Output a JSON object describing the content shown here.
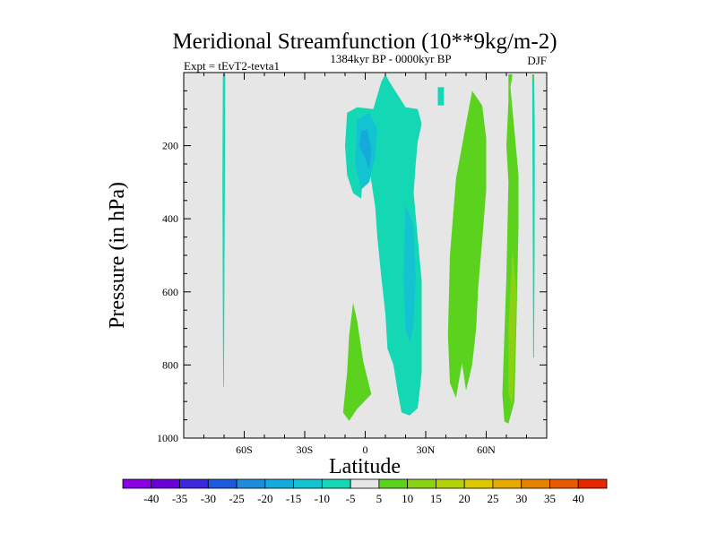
{
  "chart_data": {
    "type": "contour",
    "title": "Meridional Streamfunction (10**9kg/m-2)",
    "left_label": "Expt = tEvT2-tevta1",
    "center_label": "1384kyr BP - 0000kyr BP",
    "right_label": "DJF",
    "xlabel": "Latitude",
    "ylabel": "Pressure (in hPa)",
    "xlim": [
      -90,
      90
    ],
    "ylim": [
      1000,
      0
    ],
    "x_ticks": [
      {
        "value": -60,
        "label": "60S"
      },
      {
        "value": -30,
        "label": "30S"
      },
      {
        "value": 0,
        "label": "0"
      },
      {
        "value": 30,
        "label": "30N"
      },
      {
        "value": 60,
        "label": "60N"
      }
    ],
    "y_ticks": [
      {
        "value": 200,
        "label": "200"
      },
      {
        "value": 400,
        "label": "400"
      },
      {
        "value": 600,
        "label": "600"
      },
      {
        "value": 800,
        "label": "800"
      },
      {
        "value": 1000,
        "label": "1000"
      }
    ],
    "background_color": "#e6e6e6",
    "colorbar": {
      "boxes": [
        {
          "range": "< -40",
          "color": "#8c00e6"
        },
        {
          "range": "-40 to -35",
          "color": "#6a00d8"
        },
        {
          "range": "-35 to -30",
          "color": "#3c28dc"
        },
        {
          "range": "-30 to -25",
          "color": "#1e5adc"
        },
        {
          "range": "-25 to -20",
          "color": "#1e8cdc"
        },
        {
          "range": "-20 to -15",
          "color": "#14aadc"
        },
        {
          "range": "-15 to -10",
          "color": "#14c3d2"
        },
        {
          "range": "-10 to -5",
          "color": "#14d7b4"
        },
        {
          "range": "-5 to 5",
          "color": "#e6e6e6"
        },
        {
          "range": "5 to 10",
          "color": "#5ad21e"
        },
        {
          "range": "10 to 15",
          "color": "#8cd214"
        },
        {
          "range": "15 to 20",
          "color": "#b4d20a"
        },
        {
          "range": "20 to 25",
          "color": "#dcc800"
        },
        {
          "range": "25 to 30",
          "color": "#e6aa00"
        },
        {
          "range": "30 to 35",
          "color": "#e68200"
        },
        {
          "range": "35 to 40",
          "color": "#e65a00"
        },
        {
          "range": "> 40",
          "color": "#e62800"
        }
      ],
      "labels": [
        "-40",
        "-35",
        "-30",
        "-25",
        "-20",
        "-15",
        "-10",
        "-5",
        "5",
        "10",
        "15",
        "20",
        "25",
        "30",
        "35",
        "40"
      ]
    },
    "regions": [
      {
        "name": "Thin negative cell near 70S",
        "level": "-10 to -5",
        "color": "#14d7b4",
        "polygon": [
          [
            -70.6,
            5
          ],
          [
            -69.4,
            5
          ],
          [
            -69.6,
            300
          ],
          [
            -69.9,
            700
          ],
          [
            -70.1,
            860
          ],
          [
            -70.4,
            860
          ],
          [
            -70.6,
            700
          ],
          [
            -70.8,
            300
          ]
        ]
      },
      {
        "name": "Main negative cell (equator to 30N)",
        "level": "-10 to -5",
        "color": "#14d7b4",
        "polygon": [
          [
            -9,
            110
          ],
          [
            -4,
            95
          ],
          [
            4,
            100
          ],
          [
            8,
            25
          ],
          [
            10,
            5
          ],
          [
            12,
            25
          ],
          [
            16,
            60
          ],
          [
            20,
            95
          ],
          [
            26,
            100
          ],
          [
            28,
            140
          ],
          [
            26,
            190
          ],
          [
            25,
            250
          ],
          [
            24,
            330
          ],
          [
            26,
            450
          ],
          [
            28,
            570
          ],
          [
            28,
            700
          ],
          [
            28,
            820
          ],
          [
            27,
            870
          ],
          [
            26,
            918
          ],
          [
            22,
            938
          ],
          [
            18,
            930
          ],
          [
            16,
            870
          ],
          [
            14,
            800
          ],
          [
            11,
            755
          ],
          [
            10,
            660
          ],
          [
            8,
            560
          ],
          [
            6,
            450
          ],
          [
            5,
            370
          ],
          [
            2,
            260
          ],
          [
            0,
            190
          ],
          [
            -2,
            345
          ],
          [
            -6,
            330
          ],
          [
            -9,
            280
          ],
          [
            -10,
            200
          ]
        ]
      },
      {
        "name": "Upper core",
        "level": "-15 to -10",
        "color": "#14c3d2",
        "polygon": [
          [
            -4,
            130
          ],
          [
            2,
            110
          ],
          [
            6,
            155
          ],
          [
            5,
            230
          ],
          [
            2,
            300
          ],
          [
            -2,
            320
          ],
          [
            -5,
            250
          ]
        ]
      },
      {
        "name": "Lower core",
        "level": "-15 to -10",
        "color": "#14c3d2",
        "polygon": [
          [
            20,
            360
          ],
          [
            24,
            420
          ],
          [
            25,
            560
          ],
          [
            24,
            690
          ],
          [
            22,
            740
          ],
          [
            20,
            700
          ],
          [
            19,
            560
          ]
        ]
      },
      {
        "name": "Small negative patch",
        "level": "-10 to -5",
        "color": "#14d7b4",
        "polygon": [
          [
            36,
            40
          ],
          [
            39,
            40
          ],
          [
            39,
            90
          ],
          [
            36,
            90
          ]
        ]
      },
      {
        "name": "Inner minimum",
        "level": "-20 to -15",
        "color": "#14aadc",
        "polygon": [
          [
            -2,
            160
          ],
          [
            1,
            155
          ],
          [
            3,
            210
          ],
          [
            2,
            265
          ],
          [
            0,
            235
          ],
          [
            -3,
            200
          ]
        ]
      },
      {
        "name": "Tropical positive patch",
        "level": "5 to 10",
        "color": "#5ad21e",
        "polygon": [
          [
            -6,
            630
          ],
          [
            -4,
            680
          ],
          [
            -1,
            790
          ],
          [
            3,
            880
          ],
          [
            -4,
            920
          ],
          [
            -8,
            953
          ],
          [
            -11,
            930
          ],
          [
            -9,
            820
          ],
          [
            -8,
            720
          ]
        ]
      },
      {
        "name": "Mid-latitude positive cell",
        "level": "5 to 10",
        "color": "#5ad21e",
        "polygon": [
          [
            53,
            50
          ],
          [
            58,
            90
          ],
          [
            60,
            180
          ],
          [
            60,
            320
          ],
          [
            58,
            460
          ],
          [
            56,
            590
          ],
          [
            55,
            700
          ],
          [
            53,
            800
          ],
          [
            50,
            870
          ],
          [
            48,
            795
          ],
          [
            45,
            890
          ],
          [
            42,
            850
          ],
          [
            41,
            720
          ],
          [
            42,
            500
          ],
          [
            45,
            290
          ],
          [
            50,
            140
          ]
        ]
      },
      {
        "name": "Polar positive cell",
        "level": "5 to 10",
        "color": "#5ad21e",
        "polygon": [
          [
            71,
            5
          ],
          [
            73,
            5
          ],
          [
            72,
            40
          ],
          [
            74,
            160
          ],
          [
            76,
            280
          ],
          [
            76,
            420
          ],
          [
            75,
            680
          ],
          [
            74,
            900
          ],
          [
            71,
            960
          ],
          [
            69,
            955
          ],
          [
            68,
            880
          ],
          [
            70,
            560
          ],
          [
            71,
            300
          ],
          [
            70,
            200
          ],
          [
            71,
            80
          ]
        ]
      },
      {
        "name": "Polar positive core",
        "level": "10 to 15",
        "color": "#8cd214",
        "polygon": [
          [
            73,
            480
          ],
          [
            75,
            600
          ],
          [
            74,
            800
          ],
          [
            73,
            910
          ],
          [
            71,
            880
          ],
          [
            71,
            700
          ]
        ]
      },
      {
        "name": "Thin negative sliver near 84N",
        "level": "-10 to -5",
        "color": "#14d7b4",
        "polygon": [
          [
            82.8,
            5
          ],
          [
            83.8,
            5
          ],
          [
            84.1,
            160
          ],
          [
            84.0,
            500
          ],
          [
            83.7,
            780
          ],
          [
            83.3,
            780
          ],
          [
            83.1,
            500
          ],
          [
            82.9,
            160
          ]
        ]
      },
      {
        "name": "Top positive tick near 84N",
        "level": "5 to 10",
        "color": "#5ad21e",
        "polygon": [
          [
            83.0,
            5
          ],
          [
            83.7,
            5
          ],
          [
            83.6,
            25
          ],
          [
            83.1,
            25
          ]
        ]
      }
    ]
  }
}
